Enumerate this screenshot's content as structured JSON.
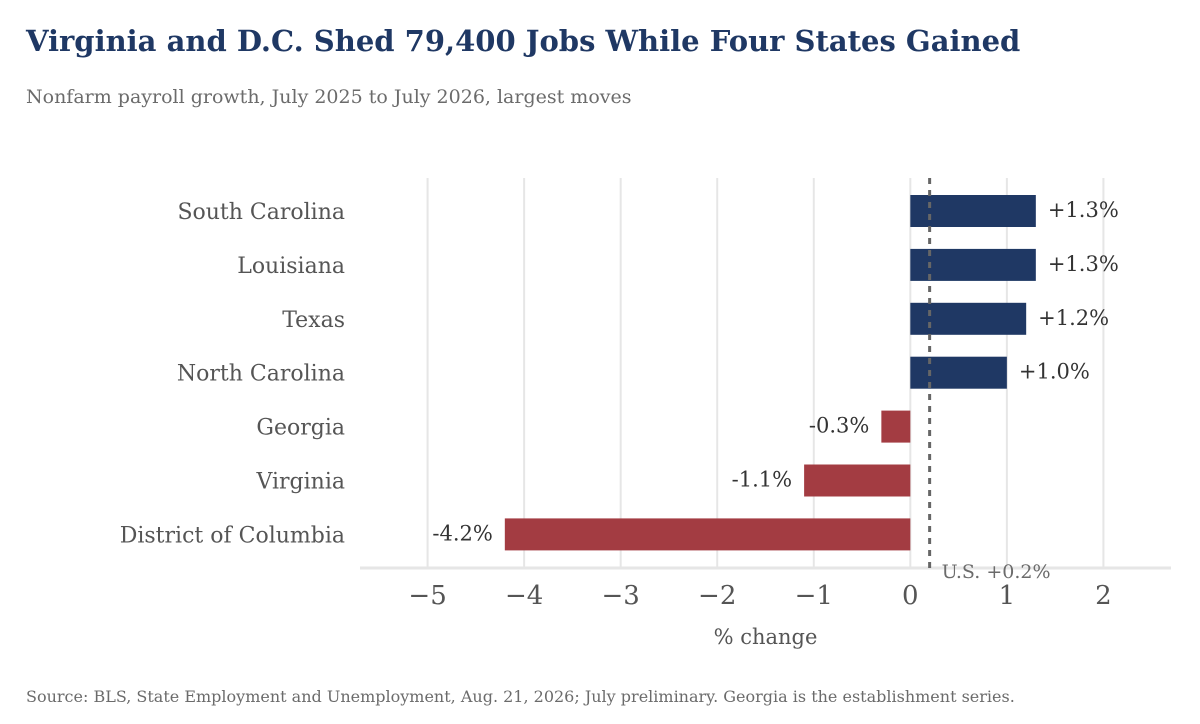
{
  "header": {
    "title": "Virginia and D.C. Shed 79,400 Jobs While Four States Gained",
    "subtitle": "Nonfarm payroll growth, July 2025 to July 2026, largest moves"
  },
  "footer": {
    "source": "Source: BLS, State Employment and Unemployment, Aug. 21, 2026; July preliminary. Georgia is the establishment series."
  },
  "chart_data": {
    "type": "bar",
    "orientation": "horizontal",
    "title": "Virginia and D.C. Shed 79,400 Jobs While Four States Gained",
    "subtitle": "Nonfarm payroll growth, July 2025 to July 2026, largest moves",
    "xlabel": "% change",
    "ylabel": "",
    "xlim": [
      -5.7,
      2.7
    ],
    "xticks": [
      -5,
      -4,
      -3,
      -2,
      -1,
      0,
      1,
      2
    ],
    "xtick_labels": [
      "−5",
      "−4",
      "−3",
      "−2",
      "−1",
      "0",
      "1",
      "2"
    ],
    "grid": true,
    "categories": [
      "South Carolina",
      "Louisiana",
      "Texas",
      "North Carolina",
      "Georgia",
      "Virginia",
      "District of Columbia"
    ],
    "values": [
      1.3,
      1.3,
      1.2,
      1.0,
      -0.3,
      -1.1,
      -4.2
    ],
    "data_labels": [
      "+1.3%",
      "+1.3%",
      "+1.2%",
      "+1.0%",
      "-0.3%",
      "-1.1%",
      "-4.2%"
    ],
    "colors": {
      "positive": "#1f3864",
      "negative": "#a33c42",
      "grid": "#e6e6e6",
      "reference_line": "#666666"
    },
    "reference_line": {
      "value": 0.2,
      "label": "U.S. +0.2%"
    }
  }
}
